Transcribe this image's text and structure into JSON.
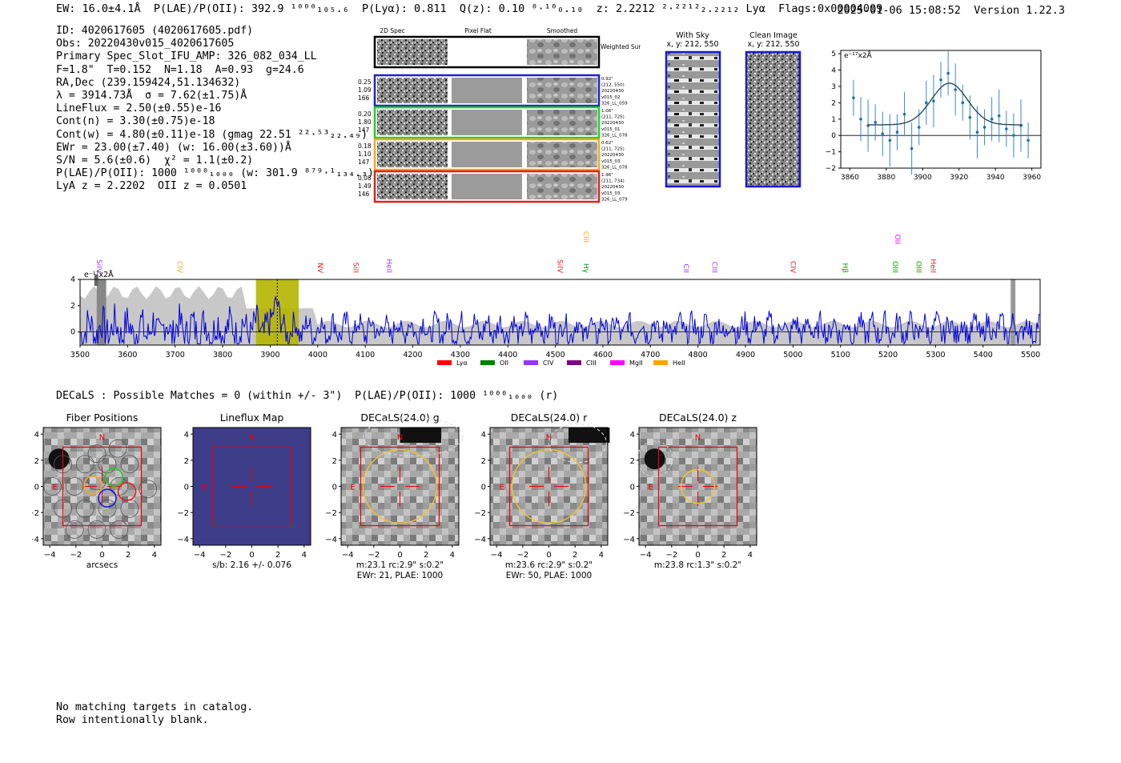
{
  "header": {
    "left": "EW: 16.0±4.1Å  P(LAE)/P(OII): 392.9 ¹⁰⁰⁰₁₀₅.₆  P(Lyα): 0.811  Q(z): 0.10 ⁰·¹⁰₀.₁₀  z: 2.2212 ²·²²¹²₂.₂₂₁₂ Lyα  Flags:0x00004009",
    "datetime": "2025-01-06 15:08:52",
    "version": "Version 1.22.3"
  },
  "info_lines": [
    "ID: 4020617605 (4020617605.pdf)",
    "Obs: 20220430v015_4020617605",
    "Primary Spec_Slot_IFU_AMP: 326_082_034_LL",
    "F=1.8\"  T=0.152  N=1.18  A=0.93  g=24.6",
    "RA,Dec (239.159424,51.134632)",
    "λ = 3914.73Å  σ = 7.62(±1.75)Å",
    "LineFlux = 2.50(±0.55)e-16",
    "Cont(n) = 3.30(±0.75)e-18",
    "Cont(w) = 4.80(±0.11)e-18 (gmag 22.51 ²²·⁵³₂₂.₄₉)",
    "EWr = 23.00(±7.40) (w: 16.00(±3.60))Å",
    "S/N = 5.6(±0.6)  χ² = 1.1(±0.2)",
    "P(LAE)/P(OII): 1000 ¹⁰⁰⁰₁₀₀₀ (w: 301.9 ⁸⁷⁹·¹₁₃₄.₃)",
    "LyA z = 2.2202  OII z = 0.0501"
  ],
  "cutouts": {
    "headers": [
      "2D Spec",
      "Pixel Flat",
      "Smoothed"
    ],
    "weighted_label": "Weighted Sum",
    "rows": [
      {
        "left": [
          "0.25",
          "1.09",
          "166"
        ],
        "right": [
          "0.92\"",
          "(212, 550)",
          "20220430",
          "v015_02",
          "326_LL_059"
        ],
        "color": "#1f1fd0"
      },
      {
        "left": [
          "0.20",
          "1.80",
          "147"
        ],
        "right": [
          "1.06\"",
          "(211, 725)",
          "20220430",
          "v015_01",
          "326_LL_078"
        ],
        "color": "#1fd01f"
      },
      {
        "left": [
          "0.18",
          "1.10",
          "147"
        ],
        "right": [
          "0.62\"",
          "(211, 725)",
          "20220430",
          "v015_03",
          "326_LL_078"
        ],
        "color": "#f5a623"
      },
      {
        "left": [
          "0.08",
          "1.49",
          "146"
        ],
        "right": [
          "1.96\"",
          "(211, 734)",
          "20220430",
          "v015_03",
          "326_LL_079"
        ],
        "color": "#e02020"
      }
    ]
  },
  "sky": {
    "with_sky_title": "With Sky",
    "with_sky_coords": "x, y: 212, 550",
    "clean_title": "Clean Image",
    "clean_coords": "x, y: 212, 550"
  },
  "zoom_plot": {
    "yunit": "e⁻¹⁷x2Å",
    "xticks": [
      "3860",
      "3880",
      "3900",
      "3920",
      "3940",
      "3960"
    ],
    "yticks": [
      "5",
      "4",
      "3",
      "2",
      "1",
      "0",
      "−1",
      "−2"
    ]
  },
  "spectrum": {
    "yunit": "e⁻¹⁷x2Å",
    "xticks": [
      "3500",
      "3600",
      "3700",
      "3800",
      "3900",
      "4000",
      "4100",
      "4200",
      "4300",
      "4400",
      "4500",
      "4600",
      "4700",
      "4800",
      "4900",
      "5000",
      "5100",
      "5200",
      "5300",
      "5400",
      "5500"
    ],
    "yticks": [
      "4",
      "2",
      "0"
    ],
    "line_labels": [
      {
        "text": "SiIV",
        "w": 3530,
        "color": "#9933ff"
      },
      {
        "text": "CIV",
        "w": 3700,
        "color": "#f5a623"
      },
      {
        "text": "NV",
        "w": 3995,
        "color": "#e02020"
      },
      {
        "text": "SiII",
        "w": 4070,
        "color": "#e02020"
      },
      {
        "text": "HeII",
        "w": 4140,
        "color": "#9933ff"
      },
      {
        "text": "SiIV",
        "w": 4500,
        "color": "#e02020"
      },
      {
        "text": "CIII",
        "w": 4555,
        "color": "#f5a623"
      },
      {
        "text": "Hγ",
        "w": 4555,
        "color": "#009900"
      },
      {
        "text": "CII",
        "w": 4765,
        "color": "#9933ff"
      },
      {
        "text": "CIII",
        "w": 4825,
        "color": "#9933ff"
      },
      {
        "text": "CIV",
        "w": 4990,
        "color": "#e02020"
      },
      {
        "text": "Hβ",
        "w": 5100,
        "color": "#009900"
      },
      {
        "text": "OII",
        "w": 5210,
        "color": "#ee00ee"
      },
      {
        "text": "OIII",
        "w": 5205,
        "color": "#009900"
      },
      {
        "text": "OIII",
        "w": 5255,
        "color": "#009900"
      },
      {
        "text": "HeII",
        "w": 5285,
        "color": "#e02020"
      }
    ],
    "legend": [
      {
        "label": "Lyα",
        "color": "#ff0000"
      },
      {
        "label": "OII",
        "color": "#008000"
      },
      {
        "label": "CIV",
        "color": "#9933ff"
      },
      {
        "label": "CIII",
        "color": "#800080"
      },
      {
        "label": "MgII",
        "color": "#ff00ff"
      },
      {
        "label": "HeII",
        "color": "#ffa500"
      }
    ]
  },
  "chart_data": {
    "type": "line",
    "title": "",
    "xlabel": "",
    "ylabel": "e⁻¹⁷x2Å",
    "xlim": [
      3500,
      5520
    ],
    "ylim": [
      -1,
      4
    ],
    "highlight_region": [
      3870,
      3960
    ],
    "zoom": {
      "x": [
        3862,
        3866,
        3870,
        3874,
        3878,
        3882,
        3886,
        3890,
        3894,
        3898,
        3902,
        3906,
        3910,
        3914,
        3918,
        3922,
        3926,
        3930,
        3934,
        3938,
        3942,
        3946,
        3950,
        3954,
        3958
      ],
      "y": [
        2.3,
        1.0,
        0.6,
        0.8,
        0.1,
        -0.3,
        0.2,
        1.3,
        -0.8,
        0.5,
        2.0,
        2.1,
        3.4,
        3.8,
        2.8,
        2.0,
        1.1,
        0.2,
        0.5,
        1.0,
        1.2,
        0.4,
        0.0,
        0.6,
        -0.3
      ],
      "fit_peak": 3.2,
      "fit_center": 3914.7,
      "fit_sigma": 7.6,
      "fit_base": 0.65
    }
  },
  "decals": {
    "summary": "DECaLS : Possible Matches = 0 (within +/- 3\")  P(LAE)/P(OII): 1000 ¹⁰⁰⁰₁₀₀₀ (r)",
    "panels": [
      {
        "title": "Fiber Positions",
        "caption1": "arcsecs",
        "caption2": ""
      },
      {
        "title": "Lineflux Map",
        "caption1": "s/b: 2.16 +/- 0.076",
        "caption2": ""
      },
      {
        "title": "DECaLS(24.0) g",
        "caption1": "m:23.1 rc:2.9\"  s:0.2\"",
        "caption2": "EWr: 21, PLAE: 1000"
      },
      {
        "title": "DECaLS(24.0) r",
        "caption1": "m:23.6 rc:2.9\"  s:0.2\"",
        "caption2": "EWr: 50, PLAE: 1000"
      },
      {
        "title": "DECaLS(24.0) z",
        "caption1": "m:23.8 rc:1.3\"  s:0.2\"",
        "caption2": ""
      }
    ],
    "ticks": [
      "4",
      "2",
      "0",
      "−2",
      "−4"
    ],
    "xticks": [
      "−4",
      "−2",
      "0",
      "2",
      "4"
    ],
    "north": "N",
    "east": "E"
  },
  "footer": [
    "No matching targets in catalog.",
    "Row intentionally blank."
  ]
}
